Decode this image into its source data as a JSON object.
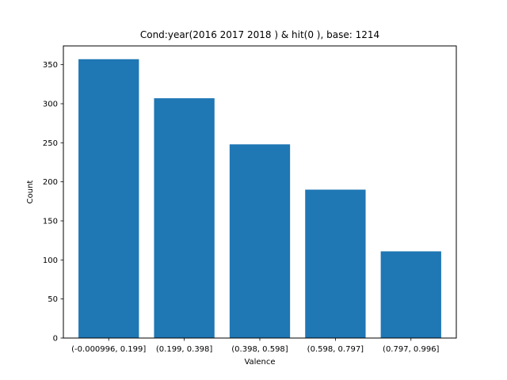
{
  "chart_data": {
    "type": "bar",
    "title": "Cond:year(2016 2017 2018 ) & hit(0 ), base: 1214",
    "xlabel": "Valence",
    "ylabel": "Count",
    "categories": [
      "(-0.000996, 0.199]",
      "(0.199, 0.398]",
      "(0.398, 0.598]",
      "(0.598, 0.797]",
      "(0.797, 0.996]"
    ],
    "values": [
      357,
      307,
      248,
      190,
      111
    ],
    "ylim": [
      0,
      374
    ],
    "yticks": [
      0,
      50,
      100,
      150,
      200,
      250,
      300,
      350
    ],
    "bar_color": "#1f77b4",
    "grid": false,
    "legend": "none"
  }
}
